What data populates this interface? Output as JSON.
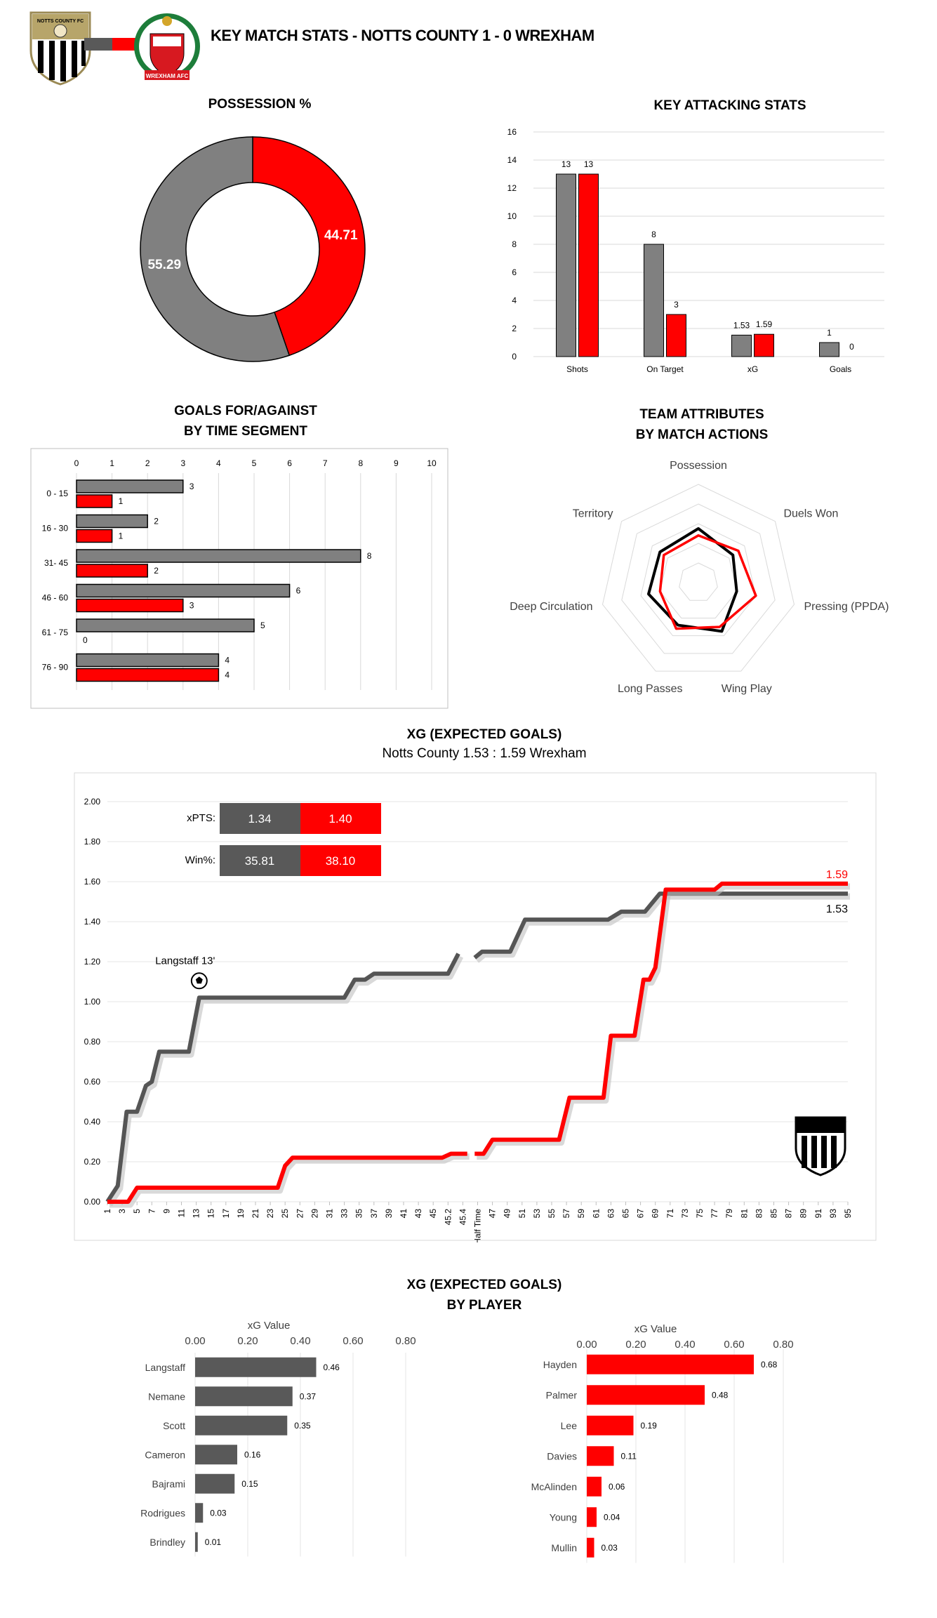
{
  "header": {
    "title": "KEY MATCH STATS - NOTTS COUNTY 1 - 0 WREXHAM",
    "home_badge_text": "Notts County FC",
    "away_badge_text": "WREXHAM AFC",
    "home_color": "#808080",
    "away_color": "#ff0000"
  },
  "chart_data": [
    {
      "id": "possession",
      "type": "pie",
      "title": "POSSESSION %",
      "labels": [
        "Notts County",
        "Wrexham"
      ],
      "values": [
        55.29,
        44.71
      ],
      "value_labels": [
        "55.29",
        "44.71"
      ],
      "colors": [
        "#808080",
        "#ff0000"
      ]
    },
    {
      "id": "attacking",
      "type": "bar",
      "title": "KEY ATTACKING STATS",
      "categories": [
        "Shots",
        "On Target",
        "xG",
        "Goals"
      ],
      "series": [
        {
          "values": [
            13,
            8,
            1.53,
            1
          ],
          "labels": [
            "13",
            "8",
            "1.53",
            "1"
          ],
          "color": "#808080"
        },
        {
          "values": [
            13,
            3,
            1.59,
            0
          ],
          "labels": [
            "13",
            "3",
            "1.59",
            "0"
          ],
          "color": "#ff0000"
        }
      ],
      "ylim": [
        0,
        16
      ],
      "yticks": [
        "0",
        "2",
        "4",
        "6",
        "8",
        "10",
        "12",
        "14",
        "16"
      ],
      "grid": true
    },
    {
      "id": "time_segments",
      "type": "bar",
      "title_lines": [
        "GOALS FOR/AGAINST",
        "BY TIME SEGMENT"
      ],
      "orientation": "horizontal",
      "categories": [
        "0 - 15",
        "16 - 30",
        "31- 45",
        "46 - 60",
        "61 - 75",
        "76 - 90"
      ],
      "series": [
        {
          "values": [
            3,
            2,
            8,
            6,
            5,
            4
          ],
          "labels": [
            "3",
            "2",
            "8",
            "6",
            "5",
            "4"
          ],
          "color": "#808080"
        },
        {
          "values": [
            1,
            1,
            2,
            3,
            0,
            4
          ],
          "labels": [
            "1",
            "1",
            "2",
            "3",
            "0",
            "4"
          ],
          "color": "#ff0000"
        }
      ],
      "xlim": [
        0,
        10
      ],
      "xticks": [
        "0",
        "1",
        "2",
        "3",
        "4",
        "5",
        "6",
        "7",
        "8",
        "9",
        "10"
      ],
      "grid": true
    },
    {
      "id": "attributes",
      "type": "radar",
      "title_lines": [
        "TEAM ATTRIBUTES",
        "BY MATCH ACTIONS"
      ],
      "axes": [
        "Possession",
        "Duels Won",
        "Pressing (PPDA)",
        "Wing Play",
        "Long Passes",
        "Deep Circulation",
        "Territory"
      ],
      "series": [
        {
          "values": [
            0.55,
            0.45,
            0.4,
            0.55,
            0.48,
            0.52,
            0.5
          ],
          "color": "#000000"
        },
        {
          "values": [
            0.48,
            0.52,
            0.6,
            0.5,
            0.52,
            0.4,
            0.45
          ],
          "color": "#ff0000"
        }
      ],
      "rings": 5
    },
    {
      "id": "xg_flow",
      "type": "line",
      "title": "XG (EXPECTED GOALS)",
      "subtitle": "Notts County 1.53 : 1.59 Wrexham",
      "x_labels": [
        "1",
        "3",
        "5",
        "7",
        "9",
        "11",
        "13",
        "15",
        "17",
        "19",
        "21",
        "23",
        "25",
        "27",
        "29",
        "31",
        "33",
        "35",
        "37",
        "39",
        "41",
        "43",
        "45",
        "45.2",
        "45.4",
        "Half Time",
        "47",
        "49",
        "51",
        "53",
        "55",
        "57",
        "59",
        "61",
        "63",
        "65",
        "67",
        "69",
        "71",
        "73",
        "75",
        "77",
        "79",
        "81",
        "83",
        "85",
        "87",
        "89",
        "91",
        "93",
        "95"
      ],
      "ylim": [
        0,
        2
      ],
      "yticks": [
        "0.00",
        "0.20",
        "0.40",
        "0.60",
        "0.80",
        "1.00",
        "1.20",
        "1.40",
        "1.60",
        "1.80",
        "2.00"
      ],
      "series": [
        {
          "color": "#555555",
          "end_label": "1.53",
          "segments": [
            [
              [
                0,
                0
              ],
              [
                0.7,
                0.08
              ],
              [
                1.3,
                0.45
              ],
              [
                2,
                0.45
              ],
              [
                2.6,
                0.58
              ],
              [
                3,
                0.6
              ],
              [
                3.5,
                0.75
              ],
              [
                5.5,
                0.75
              ],
              [
                6.2,
                1.02
              ],
              [
                16,
                1.02
              ],
              [
                16.7,
                1.11
              ],
              [
                17.4,
                1.11
              ],
              [
                18,
                1.14
              ],
              [
                23,
                1.14
              ],
              [
                23.7,
                1.24
              ]
            ],
            [
              [
                24.8,
                1.22
              ],
              [
                25.3,
                1.25
              ],
              [
                27.2,
                1.25
              ],
              [
                28.2,
                1.41
              ],
              [
                33.8,
                1.41
              ],
              [
                34.7,
                1.45
              ],
              [
                36.3,
                1.45
              ],
              [
                37.3,
                1.54
              ],
              [
                50,
                1.54
              ]
            ]
          ]
        },
        {
          "color": "#ff0000",
          "end_label": "1.59",
          "segments": [
            [
              [
                0,
                0
              ],
              [
                1.4,
                0
              ],
              [
                2,
                0.07
              ],
              [
                11.5,
                0.07
              ],
              [
                12,
                0.18
              ],
              [
                12.5,
                0.22
              ],
              [
                22.6,
                0.22
              ],
              [
                23.2,
                0.24
              ],
              [
                24.3,
                0.24
              ]
            ],
            [
              [
                24.8,
                0.24
              ],
              [
                25.4,
                0.24
              ],
              [
                26,
                0.31
              ],
              [
                30.5,
                0.31
              ],
              [
                31.2,
                0.52
              ],
              [
                33.5,
                0.52
              ],
              [
                34,
                0.83
              ],
              [
                35.6,
                0.83
              ],
              [
                36.2,
                1.11
              ],
              [
                36.6,
                1.11
              ],
              [
                37,
                1.17
              ],
              [
                37.7,
                1.56
              ],
              [
                41,
                1.56
              ],
              [
                41.5,
                1.59
              ],
              [
                50,
                1.59
              ]
            ]
          ]
        }
      ],
      "annotation": {
        "text": "Langstaff 13'",
        "x": 6.2,
        "y": 1.02
      },
      "stat_table": [
        {
          "label": "xPTS:",
          "home": "1.34",
          "away": "1.40"
        },
        {
          "label": "Win%:",
          "home": "35.81",
          "away": "38.10"
        }
      ]
    },
    {
      "id": "home_players",
      "type": "bar",
      "title_lines": [
        "XG (EXPECTED GOALS)",
        "BY PLAYER"
      ],
      "orientation": "horizontal",
      "xlabel": "xG Value",
      "categories": [
        "Langstaff",
        "Nemane",
        "Scott",
        "Cameron",
        "Bajrami",
        "Rodrigues",
        "Brindley"
      ],
      "values": [
        0.46,
        0.37,
        0.35,
        0.16,
        0.15,
        0.03,
        0.01
      ],
      "labels": [
        "0.46",
        "0.37",
        "0.35",
        "0.16",
        "0.15",
        "0.03",
        "0.01"
      ],
      "color": "#595959",
      "xlim": [
        0,
        0.8
      ],
      "xticks": [
        "0.00",
        "0.20",
        "0.40",
        "0.60",
        "0.80"
      ]
    },
    {
      "id": "away_players",
      "type": "bar",
      "orientation": "horizontal",
      "xlabel": "xG Value",
      "categories": [
        "Hayden",
        "Palmer",
        "Lee",
        "Davies",
        "McAlinden",
        "Young",
        "Mullin"
      ],
      "values": [
        0.68,
        0.48,
        0.19,
        0.11,
        0.06,
        0.04,
        0.03
      ],
      "labels": [
        "0.68",
        "0.48",
        "0.19",
        "0.11",
        "0.06",
        "0.04",
        "0.03"
      ],
      "color": "#ff0000",
      "xlim": [
        0,
        0.8
      ],
      "xticks": [
        "0.00",
        "0.20",
        "0.40",
        "0.60",
        "0.80"
      ]
    }
  ]
}
